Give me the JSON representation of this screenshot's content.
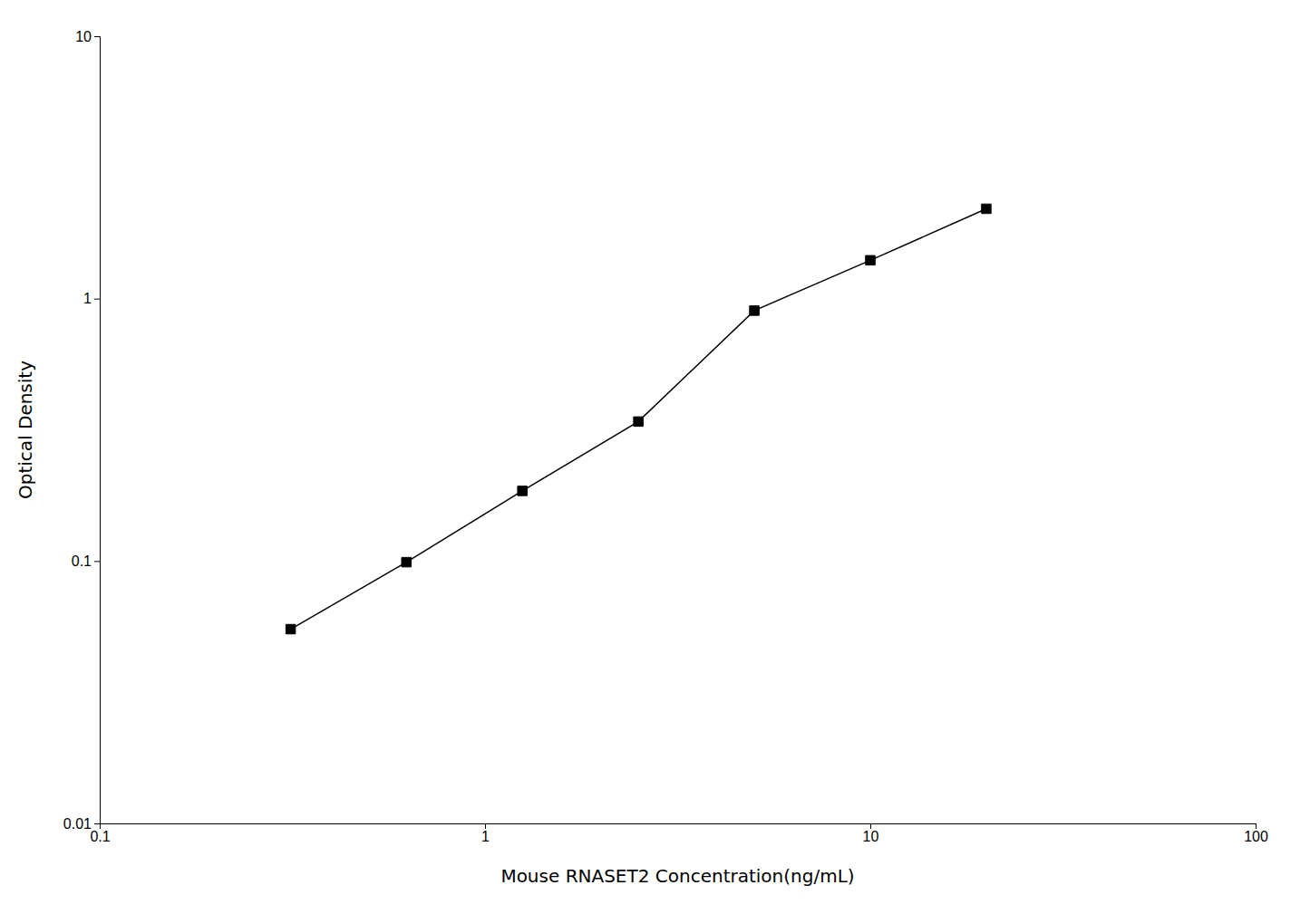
{
  "chart_data": {
    "type": "line",
    "x": [
      0.313,
      0.625,
      1.25,
      2.5,
      5.0,
      10.0,
      20.0
    ],
    "values": [
      0.055,
      0.099,
      0.185,
      0.34,
      0.9,
      1.4,
      2.2
    ],
    "xlabel": "Mouse RNASET2 Concentration(ng/mL)",
    "ylabel": "Optical Density",
    "xlim": [
      0.1,
      100
    ],
    "ylim": [
      0.01,
      10
    ],
    "xticks": [
      0.1,
      1,
      10,
      100
    ],
    "yticks": [
      0.01,
      0.1,
      1,
      10
    ],
    "log": true,
    "grid": false,
    "color": "#000000",
    "marker": "square"
  }
}
